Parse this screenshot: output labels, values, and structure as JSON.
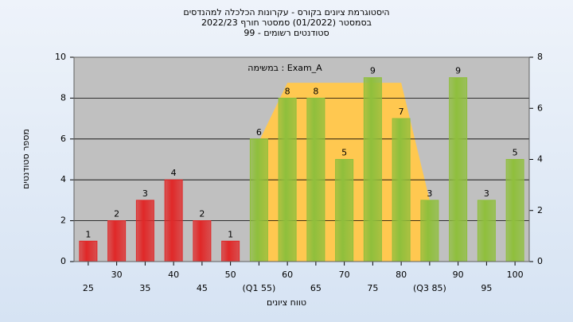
{
  "chart_data": {
    "type": "bar",
    "title": [
      "היסטוגרמת ציונים בקורס - עקרונות הכלכלה למהנדסים",
      "בסמסטר  (01/2022)  סמסטר חורף 2022/23",
      "סטודנטים רשומים - 99"
    ],
    "annotation": "במשימה : Exam_A",
    "xlabel": "טווח ציונים",
    "ylabel": "מספר סטודנטים",
    "categories": [
      "25",
      "30",
      "35",
      "40",
      "45",
      "50",
      "(Q1 55)",
      "60",
      "65",
      "70",
      "75",
      "80",
      "(Q3 85)",
      "90",
      "95",
      "100"
    ],
    "values": [
      1,
      2,
      3,
      4,
      2,
      1,
      6,
      8,
      8,
      5,
      9,
      7,
      3,
      9,
      3,
      5
    ],
    "colors": [
      "#e02828",
      "#e02828",
      "#e02828",
      "#e02828",
      "#e02828",
      "#e02828",
      "#8fbf3c",
      "#8fbf3c",
      "#8fbf3c",
      "#8fbf3c",
      "#8fbf3c",
      "#8fbf3c",
      "#8fbf3c",
      "#8fbf3c",
      "#8fbf3c",
      "#8fbf3c"
    ],
    "area": {
      "color": "#ffc850",
      "axis": "y2",
      "values": [
        null,
        null,
        null,
        null,
        null,
        null,
        4.7,
        7,
        7,
        7,
        7,
        7,
        2.4,
        null,
        null,
        null
      ]
    },
    "ylim": [
      0,
      10
    ],
    "yticks": [
      0,
      2,
      4,
      6,
      8,
      10
    ],
    "y2lim": [
      0,
      8
    ],
    "y2ticks": [
      0,
      2,
      4,
      6,
      8
    ],
    "grid": true
  }
}
